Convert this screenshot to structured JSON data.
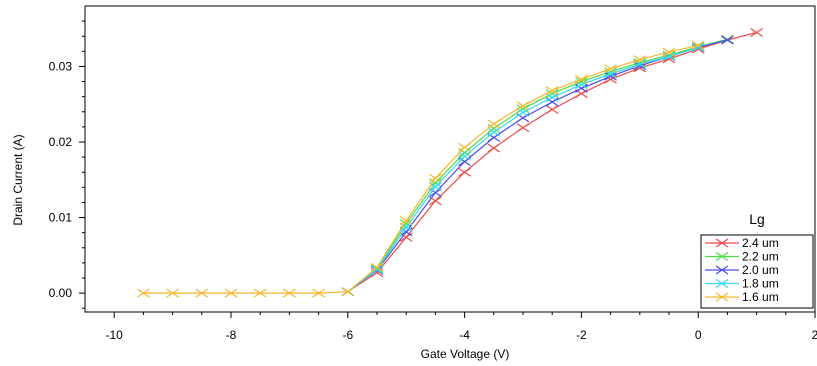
{
  "chart_data": {
    "type": "line",
    "title": "",
    "xlabel": "Gate Voltage (V)",
    "ylabel": "Drain Current (A)",
    "xlim": [
      -10.5,
      2
    ],
    "ylim": [
      -0.0025,
      0.038
    ],
    "xticks": [
      -10,
      -8,
      -6,
      -4,
      -2,
      0,
      2
    ],
    "xtick_labels": [
      "-10",
      "-8",
      "-6",
      "-4",
      "-2",
      "0",
      "2"
    ],
    "yticks": [
      0.0,
      0.01,
      0.02,
      0.03
    ],
    "ytick_labels": [
      "0.00",
      "0.01",
      "0.02",
      "0.03"
    ],
    "grid": false,
    "legend_title": "Lg",
    "legend_position": "bottom-right",
    "series": [
      {
        "name": "2.4 um",
        "color": "#f04b4b",
        "x": [
          -6.0,
          -5.5,
          -5.0,
          -4.5,
          -4.0,
          -3.5,
          -3.0,
          -2.5,
          -2.0,
          -1.5,
          -1.0,
          -0.5,
          0.0,
          0.5,
          1.0
        ],
        "y": [
          0.0002,
          0.0027,
          0.0074,
          0.0122,
          0.016,
          0.0192,
          0.0219,
          0.0243,
          0.0264,
          0.0283,
          0.0298,
          0.031,
          0.0323,
          0.0335,
          0.0345
        ]
      },
      {
        "name": "2.2 um",
        "color": "#4ddc4d",
        "x": [
          -6.0,
          -5.5,
          -5.0,
          -4.5,
          -4.0,
          -3.5,
          -3.0,
          -2.5,
          -2.0,
          -1.5,
          -1.0,
          -0.5,
          0.0,
          0.5
        ],
        "y": [
          0.0002,
          0.0032,
          0.0092,
          0.0146,
          0.0186,
          0.0218,
          0.0244,
          0.0264,
          0.028,
          0.0293,
          0.0305,
          0.0315,
          0.0326,
          0.0336
        ]
      },
      {
        "name": "2.0 um",
        "color": "#4d4df0",
        "x": [
          -6.0,
          -5.5,
          -5.0,
          -4.5,
          -4.0,
          -3.5,
          -3.0,
          -2.5,
          -2.0,
          -1.5,
          -1.0,
          -0.5,
          0.0,
          0.5
        ],
        "y": [
          0.0002,
          0.003,
          0.0081,
          0.0133,
          0.0174,
          0.0206,
          0.0232,
          0.0253,
          0.0271,
          0.0287,
          0.0301,
          0.0313,
          0.0325,
          0.0335
        ]
      },
      {
        "name": "1.8 um",
        "color": "#33dcf0",
        "x": [
          -6.0,
          -5.5,
          -5.0,
          -4.5,
          -4.0,
          -3.5,
          -3.0,
          -2.5,
          -2.0,
          -1.5,
          -1.0,
          -0.5,
          0.0
        ],
        "y": [
          0.0002,
          0.0031,
          0.0087,
          0.0141,
          0.0181,
          0.0213,
          0.0239,
          0.0259,
          0.0276,
          0.029,
          0.0303,
          0.0313,
          0.0325
        ]
      },
      {
        "name": "1.6 um",
        "color": "#f5b830",
        "x": [
          -9.5,
          -9.0,
          -8.5,
          -8.0,
          -7.5,
          -7.0,
          -6.5,
          -6.0,
          -5.5,
          -5.0,
          -4.5,
          -4.0,
          -3.5,
          -3.0,
          -2.5,
          -2.0,
          -1.5,
          -1.0,
          -0.5,
          0.0
        ],
        "y": [
          0.0,
          0.0,
          0.0,
          0.0,
          0.0,
          0.0,
          0.0,
          0.0002,
          0.0034,
          0.0096,
          0.0152,
          0.0193,
          0.0224,
          0.0248,
          0.0268,
          0.0283,
          0.0297,
          0.0309,
          0.0319,
          0.0328
        ]
      }
    ]
  }
}
